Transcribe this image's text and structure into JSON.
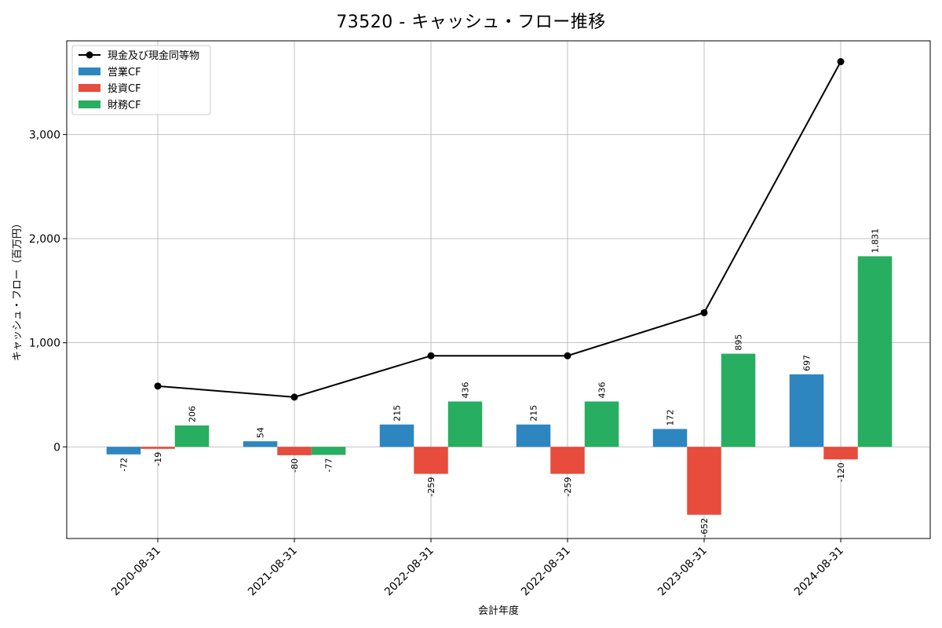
{
  "chart_data": {
    "type": "bar",
    "title": "73520 - キャッシュ・フロー推移",
    "xlabel": "会計年度",
    "ylabel": "キャッシュ・フロー（百万円）",
    "categories": [
      "2020-08-31",
      "2021-08-31",
      "2022-08-31",
      "2022-08-31",
      "2023-08-31",
      "2024-08-31"
    ],
    "ylim": [
      -880,
      3900
    ],
    "yticks": [
      0,
      1000,
      2000,
      3000
    ],
    "ytick_labels": [
      "0",
      "1,000",
      "2,000",
      "3,000"
    ],
    "grid": true,
    "legend_position": "top-left",
    "series": [
      {
        "name": "営業CF",
        "kind": "bar",
        "color": "#2e86c1",
        "values": [
          -72,
          54,
          215,
          215,
          172,
          697
        ],
        "labels": [
          "-72",
          "54",
          "215",
          "215",
          "172",
          "697"
        ]
      },
      {
        "name": "投資CF",
        "kind": "bar",
        "color": "#e74c3c",
        "values": [
          -19,
          -80,
          -259,
          -259,
          -652,
          -120
        ],
        "labels": [
          "-19",
          "-80",
          "-259",
          "-259",
          "-652",
          "-120"
        ]
      },
      {
        "name": "財務CF",
        "kind": "bar",
        "color": "#27ae60",
        "values": [
          206,
          -77,
          436,
          436,
          895,
          1831
        ],
        "labels": [
          "206",
          "-77",
          "436",
          "436",
          "895",
          "1,831"
        ]
      },
      {
        "name": "現金及び現金同等物",
        "kind": "line",
        "color": "#000000",
        "values": [
          584,
          478,
          875,
          875,
          1289,
          3700
        ]
      }
    ]
  }
}
